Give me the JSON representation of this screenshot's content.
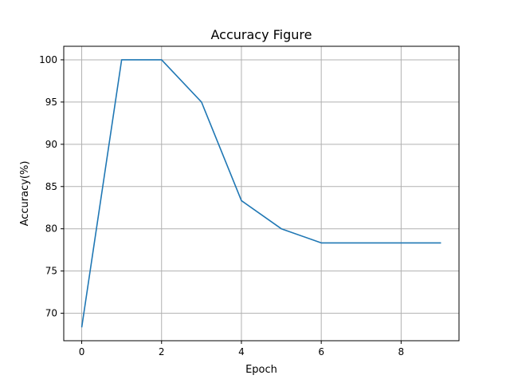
{
  "chart_data": {
    "type": "line",
    "title": "Accuracy Figure",
    "xlabel": "Epoch",
    "ylabel": "Accuracy(%)",
    "x": [
      0,
      1,
      2,
      3,
      4,
      5,
      6,
      7,
      8,
      9
    ],
    "series": [
      {
        "values": [
          68.33,
          100,
          100,
          95,
          83.33,
          80,
          78.33,
          78.33,
          78.33,
          78.33
        ],
        "color": "#1f77b4"
      }
    ],
    "xlim": [
      -0.45,
      9.45
    ],
    "ylim": [
      66.75,
      101.6
    ],
    "xticks": [
      0,
      2,
      4,
      6,
      8
    ],
    "yticks": [
      70,
      75,
      80,
      85,
      90,
      95,
      100
    ],
    "grid": true,
    "legend": false
  }
}
